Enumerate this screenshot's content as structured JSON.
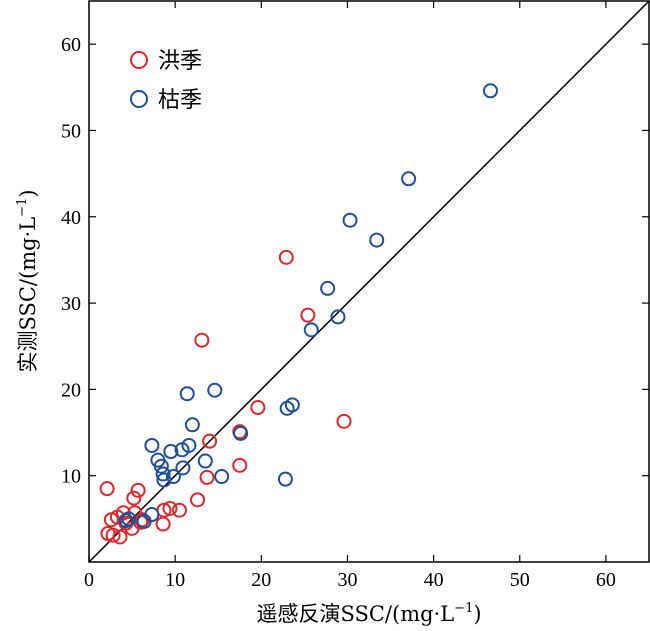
{
  "chart_data": {
    "type": "scatter",
    "xlabel": {
      "main": "遥感反演SSC/(mg·L",
      "sup": "−1",
      "close": ")"
    },
    "ylabel": {
      "main": "实测SSC/(mg·L",
      "sup": "−1",
      "close": ")"
    },
    "xlim": [
      0,
      65
    ],
    "ylim": [
      0,
      65
    ],
    "xticks": [
      "0",
      "10",
      "20",
      "30",
      "40",
      "50",
      "60"
    ],
    "yticks": [
      "10",
      "20",
      "30",
      "40",
      "50",
      "60"
    ],
    "reference_line": "1:1",
    "grid": false,
    "legend_position": "top-left",
    "series": [
      {
        "name": "洪季",
        "color": "#e0262b",
        "marker": "open-circle",
        "points": [
          [
            2.2,
            3.3
          ],
          [
            2.8,
            3.1
          ],
          [
            3.6,
            2.9
          ],
          [
            2.6,
            4.9
          ],
          [
            3.3,
            5.2
          ],
          [
            4.0,
            5.7
          ],
          [
            4.3,
            4.5
          ],
          [
            5.0,
            3.9
          ],
          [
            5.3,
            5.7
          ],
          [
            6.0,
            4.6
          ],
          [
            6.2,
            4.9
          ],
          [
            5.2,
            7.4
          ],
          [
            5.7,
            8.3
          ],
          [
            2.1,
            8.5
          ],
          [
            8.6,
            4.4
          ],
          [
            8.7,
            6.0
          ],
          [
            9.4,
            6.2
          ],
          [
            10.5,
            6.0
          ],
          [
            12.6,
            7.2
          ],
          [
            13.7,
            9.8
          ],
          [
            14.0,
            14.0
          ],
          [
            17.5,
            11.2
          ],
          [
            17.5,
            15.1
          ],
          [
            19.6,
            17.9
          ],
          [
            13.1,
            25.7
          ],
          [
            22.9,
            35.3
          ],
          [
            25.4,
            28.6
          ],
          [
            29.6,
            16.3
          ]
        ]
      },
      {
        "name": "枯季",
        "color": "#1f4e9a",
        "marker": "open-circle",
        "points": [
          [
            4.3,
            4.8
          ],
          [
            4.6,
            5.0
          ],
          [
            6.4,
            4.7
          ],
          [
            7.3,
            5.5
          ],
          [
            7.3,
            13.5
          ],
          [
            8.0,
            11.8
          ],
          [
            8.4,
            11.1
          ],
          [
            8.6,
            10.2
          ],
          [
            8.7,
            9.5
          ],
          [
            9.5,
            12.8
          ],
          [
            9.8,
            9.9
          ],
          [
            10.8,
            13.0
          ],
          [
            10.9,
            10.9
          ],
          [
            11.4,
            19.5
          ],
          [
            11.6,
            13.5
          ],
          [
            12.0,
            15.9
          ],
          [
            13.5,
            11.7
          ],
          [
            14.6,
            19.9
          ],
          [
            15.4,
            9.9
          ],
          [
            17.6,
            14.9
          ],
          [
            22.8,
            9.6
          ],
          [
            23.0,
            17.8
          ],
          [
            23.6,
            18.2
          ],
          [
            25.8,
            26.9
          ],
          [
            27.7,
            31.7
          ],
          [
            28.9,
            28.4
          ],
          [
            30.3,
            39.6
          ],
          [
            33.4,
            37.3
          ],
          [
            37.1,
            44.4
          ],
          [
            46.6,
            54.6
          ]
        ]
      }
    ]
  }
}
